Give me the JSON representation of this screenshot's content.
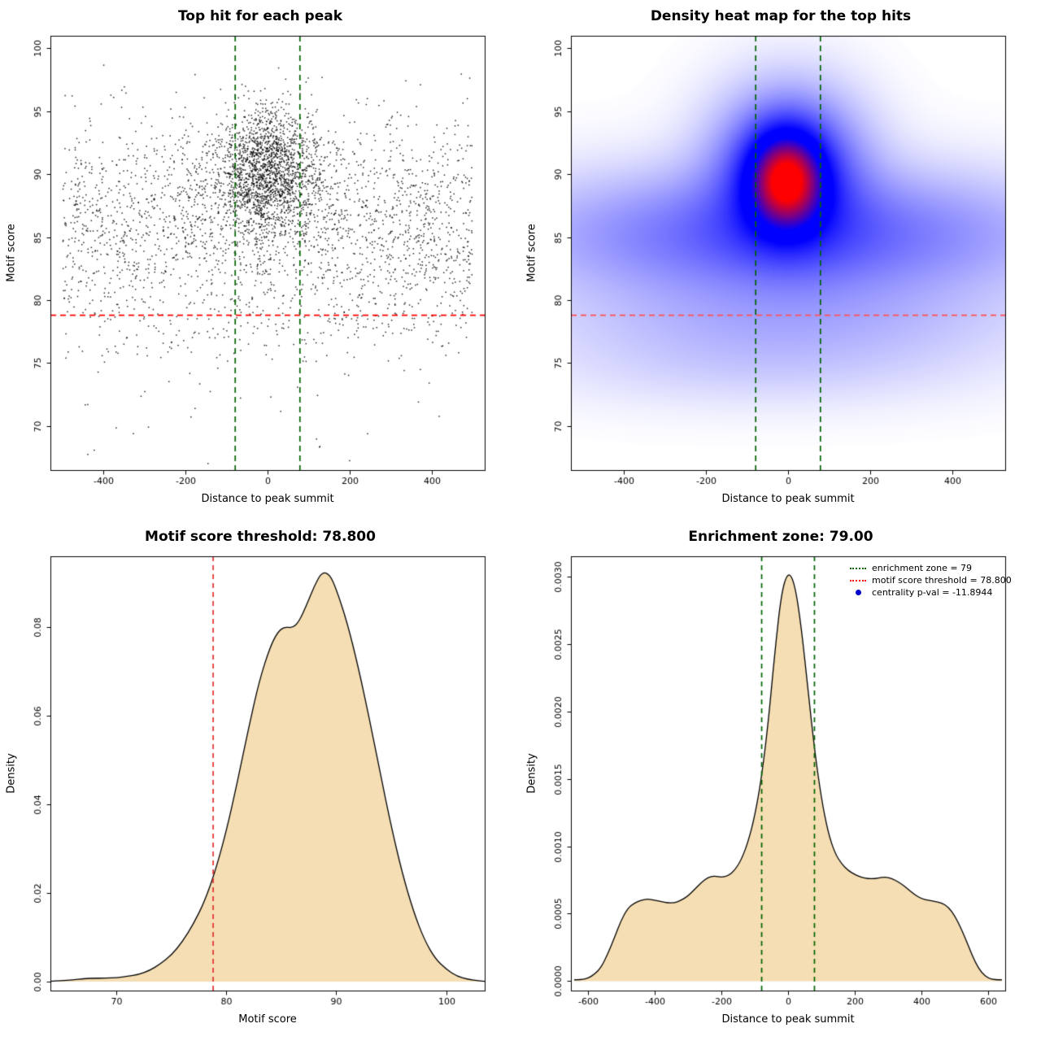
{
  "figure": {
    "background": "#ffffff"
  },
  "chart_data": [
    {
      "id": "top_hits_scatter",
      "type": "scatter",
      "title": "Top hit for each peak",
      "xlabel": "Distance to peak summit",
      "ylabel": "Motif score",
      "xlim": [
        -530,
        530
      ],
      "ylim": [
        66.5,
        101
      ],
      "xticks": [
        -400,
        -200,
        0,
        200,
        400
      ],
      "yticks": [
        70,
        75,
        80,
        85,
        90,
        95,
        100
      ],
      "point_color": "#000000",
      "hline": {
        "y": 78.8,
        "color": "#ff0000",
        "dash": [
          7,
          5
        ],
        "meaning": "motif score threshold = 78.800"
      },
      "vlines": {
        "xs": [
          -79,
          79
        ],
        "color": "#006400",
        "dash": [
          7,
          5
        ],
        "meaning": "enrichment zone = ±79"
      },
      "point_cloud_model": {
        "seed": 42,
        "components": [
          {
            "n": 1500,
            "x": {
              "dist": "normal",
              "mean": 0,
              "sd": 55
            },
            "y": {
              "dist": "normal",
              "mean": 90.3,
              "sd": 2.4,
              "clip": [
                83.5,
                100.2
              ]
            }
          },
          {
            "n": 450,
            "x": {
              "dist": "normal",
              "mean": 0,
              "sd": 130
            },
            "y": {
              "dist": "normal",
              "mean": 89.0,
              "sd": 3.0,
              "clip": [
                80,
                99.5
              ]
            }
          },
          {
            "n": 2150,
            "x": {
              "dist": "uniform",
              "min": -500,
              "max": 500
            },
            "y": {
              "dist": "normal",
              "mean": 86.0,
              "sd": 4.2,
              "clip": [
                75,
                99
              ]
            }
          },
          {
            "n": 170,
            "x": {
              "dist": "uniform",
              "min": -500,
              "max": 500
            },
            "y": {
              "dist": "normal",
              "mean": 78.5,
              "sd": 2.2,
              "clip": [
                70,
                80.5
              ]
            }
          },
          {
            "n": 30,
            "x": {
              "dist": "uniform",
              "min": -480,
              "max": 480
            },
            "y": {
              "dist": "uniform",
              "min": 67,
              "max": 76
            }
          }
        ]
      }
    },
    {
      "id": "top_hits_heatmap",
      "type": "heatmap",
      "title": "Density heat map for the top hits",
      "xlabel": "Distance to peak summit",
      "ylabel": "Motif score",
      "xlim": [
        -530,
        530
      ],
      "ylim": [
        66.5,
        101
      ],
      "xticks": [
        -400,
        -200,
        0,
        200,
        400
      ],
      "yticks": [
        70,
        75,
        80,
        85,
        90,
        95,
        100
      ],
      "colormap": {
        "low": "#ffffff",
        "mid": "#0000ff",
        "high": "#ff0000"
      },
      "hline": {
        "y": 78.8,
        "color": "#ff5050",
        "dash": [
          7,
          5
        ],
        "meaning": "motif score threshold = 78.800"
      },
      "vlines": {
        "xs": [
          -79,
          79
        ],
        "color": "#006400",
        "dash": [
          7,
          5
        ],
        "meaning": "enrichment zone = ±79"
      },
      "density_components": [
        {
          "w": 1.0,
          "mx": -5,
          "sx": 60,
          "my": 89.6,
          "sy": 2.5
        },
        {
          "w": 0.55,
          "mx": 0,
          "sx": 115,
          "my": 90.5,
          "sy": 3.9
        },
        {
          "w": 0.38,
          "mx": 0,
          "sx": 400,
          "my": 85.2,
          "sy": 3.3
        },
        {
          "w": 0.12,
          "mx": 0,
          "sx": 380,
          "my": 78.3,
          "sy": 2.6
        },
        {
          "w": 0.05,
          "mx": -60,
          "sx": 350,
          "my": 74.5,
          "sy": 2.2
        }
      ]
    },
    {
      "id": "motif_score_density",
      "type": "area",
      "title": "Motif score threshold: 78.800",
      "xlabel": "Motif score",
      "ylabel": "Density",
      "xlim": [
        64,
        103.5
      ],
      "ylim": [
        -0.002,
        0.096
      ],
      "xticks": [
        70,
        80,
        90,
        100
      ],
      "yticks": [
        0,
        0.02,
        0.04,
        0.06,
        0.08
      ],
      "ytick_labels": [
        "0.00",
        "0.02",
        "0.04",
        "0.06",
        "0.08"
      ],
      "fill": "#f5deb3",
      "line_color": "#000000",
      "vlines": {
        "xs": [
          78.8
        ],
        "color": "#e03030",
        "dash": [
          6,
          5
        ],
        "meaning": "motif score threshold = 78.800"
      },
      "curve": [
        [
          64,
          0.0001
        ],
        [
          65,
          0.0002
        ],
        [
          66,
          0.0004
        ],
        [
          67,
          0.0007
        ],
        [
          68,
          0.0008
        ],
        [
          69,
          0.0008
        ],
        [
          70,
          0.0009
        ],
        [
          71,
          0.0012
        ],
        [
          72,
          0.0016
        ],
        [
          73,
          0.0025
        ],
        [
          74,
          0.004
        ],
        [
          75,
          0.006
        ],
        [
          76,
          0.009
        ],
        [
          77,
          0.013
        ],
        [
          78,
          0.018
        ],
        [
          79,
          0.025
        ],
        [
          80,
          0.034
        ],
        [
          81,
          0.045
        ],
        [
          82,
          0.057
        ],
        [
          83,
          0.068
        ],
        [
          84,
          0.0757
        ],
        [
          84.7,
          0.079
        ],
        [
          85.3,
          0.0801
        ],
        [
          86,
          0.0798
        ],
        [
          86.6,
          0.0812
        ],
        [
          87.3,
          0.085
        ],
        [
          88,
          0.0893
        ],
        [
          88.7,
          0.0925
        ],
        [
          89.4,
          0.0919
        ],
        [
          90,
          0.0886
        ],
        [
          91,
          0.081
        ],
        [
          92,
          0.071
        ],
        [
          93,
          0.0595
        ],
        [
          94,
          0.047
        ],
        [
          95,
          0.035
        ],
        [
          96,
          0.0245
        ],
        [
          97,
          0.016
        ],
        [
          98,
          0.0095
        ],
        [
          99,
          0.0052
        ],
        [
          100,
          0.0028
        ],
        [
          101,
          0.0012
        ],
        [
          102,
          0.0005
        ],
        [
          103,
          0.0002
        ],
        [
          103.5,
          0.0001
        ]
      ]
    },
    {
      "id": "distance_density",
      "type": "area",
      "title": "Enrichment zone: 79.00",
      "xlabel": "Distance to peak summit",
      "ylabel": "Density",
      "xlim": [
        -650,
        650
      ],
      "ylim": [
        -7e-05,
        0.00315
      ],
      "xticks": [
        -600,
        -400,
        -200,
        0,
        200,
        400,
        600
      ],
      "yticks": [
        0,
        0.0005,
        0.001,
        0.0015,
        0.002,
        0.0025,
        0.003
      ],
      "ytick_labels": [
        "0.0000",
        "0.0005",
        "0.0010",
        "0.0015",
        "0.0020",
        "0.0025",
        "0.0030"
      ],
      "fill": "#f5deb3",
      "line_color": "#000000",
      "vlines": {
        "xs": [
          -79,
          79
        ],
        "color": "#006400",
        "dash": [
          6,
          5
        ],
        "meaning": "enrichment zone = ±79"
      },
      "curve": [
        [
          -640,
          1e-05
        ],
        [
          -620,
          1e-05
        ],
        [
          -600,
          2e-05
        ],
        [
          -580,
          5e-05
        ],
        [
          -560,
          0.0001
        ],
        [
          -540,
          0.0002
        ],
        [
          -520,
          0.00032
        ],
        [
          -500,
          0.00045
        ],
        [
          -480,
          0.00054
        ],
        [
          -460,
          0.00058
        ],
        [
          -440,
          0.0006
        ],
        [
          -420,
          0.00061
        ],
        [
          -400,
          0.0006
        ],
        [
          -380,
          0.00059
        ],
        [
          -360,
          0.00058
        ],
        [
          -340,
          0.00058
        ],
        [
          -320,
          0.0006
        ],
        [
          -300,
          0.00063
        ],
        [
          -280,
          0.00068
        ],
        [
          -260,
          0.00073
        ],
        [
          -240,
          0.00077
        ],
        [
          -220,
          0.00078
        ],
        [
          -200,
          0.00077
        ],
        [
          -180,
          0.00078
        ],
        [
          -160,
          0.00082
        ],
        [
          -140,
          0.0009
        ],
        [
          -120,
          0.00103
        ],
        [
          -100,
          0.00122
        ],
        [
          -80,
          0.0015
        ],
        [
          -60,
          0.0019
        ],
        [
          -40,
          0.00243
        ],
        [
          -20,
          0.00288
        ],
        [
          0,
          0.00304
        ],
        [
          20,
          0.00295
        ],
        [
          40,
          0.00262
        ],
        [
          60,
          0.00215
        ],
        [
          80,
          0.0017
        ],
        [
          100,
          0.00135
        ],
        [
          120,
          0.0011
        ],
        [
          140,
          0.00095
        ],
        [
          160,
          0.00087
        ],
        [
          180,
          0.00082
        ],
        [
          200,
          0.00079
        ],
        [
          220,
          0.00077
        ],
        [
          240,
          0.00076
        ],
        [
          260,
          0.00076
        ],
        [
          280,
          0.00077
        ],
        [
          300,
          0.00077
        ],
        [
          320,
          0.00075
        ],
        [
          340,
          0.00072
        ],
        [
          360,
          0.00068
        ],
        [
          380,
          0.00064
        ],
        [
          400,
          0.00061
        ],
        [
          420,
          0.0006
        ],
        [
          440,
          0.00059
        ],
        [
          460,
          0.00058
        ],
        [
          480,
          0.00055
        ],
        [
          500,
          0.00048
        ],
        [
          520,
          0.00038
        ],
        [
          540,
          0.00026
        ],
        [
          560,
          0.00014
        ],
        [
          580,
          6e-05
        ],
        [
          600,
          2e-05
        ],
        [
          620,
          1e-05
        ],
        [
          640,
          1e-05
        ]
      ],
      "legend": {
        "items": [
          {
            "marker": "dotted-line",
            "color": "#006400",
            "label": "enrichment zone = 79"
          },
          {
            "marker": "dotted-line",
            "color": "#ff0000",
            "label": "motif score threshold = 78.800"
          },
          {
            "marker": "dot",
            "color": "#0000cd",
            "label": "centrality p-val = -11.8944"
          }
        ]
      }
    }
  ]
}
